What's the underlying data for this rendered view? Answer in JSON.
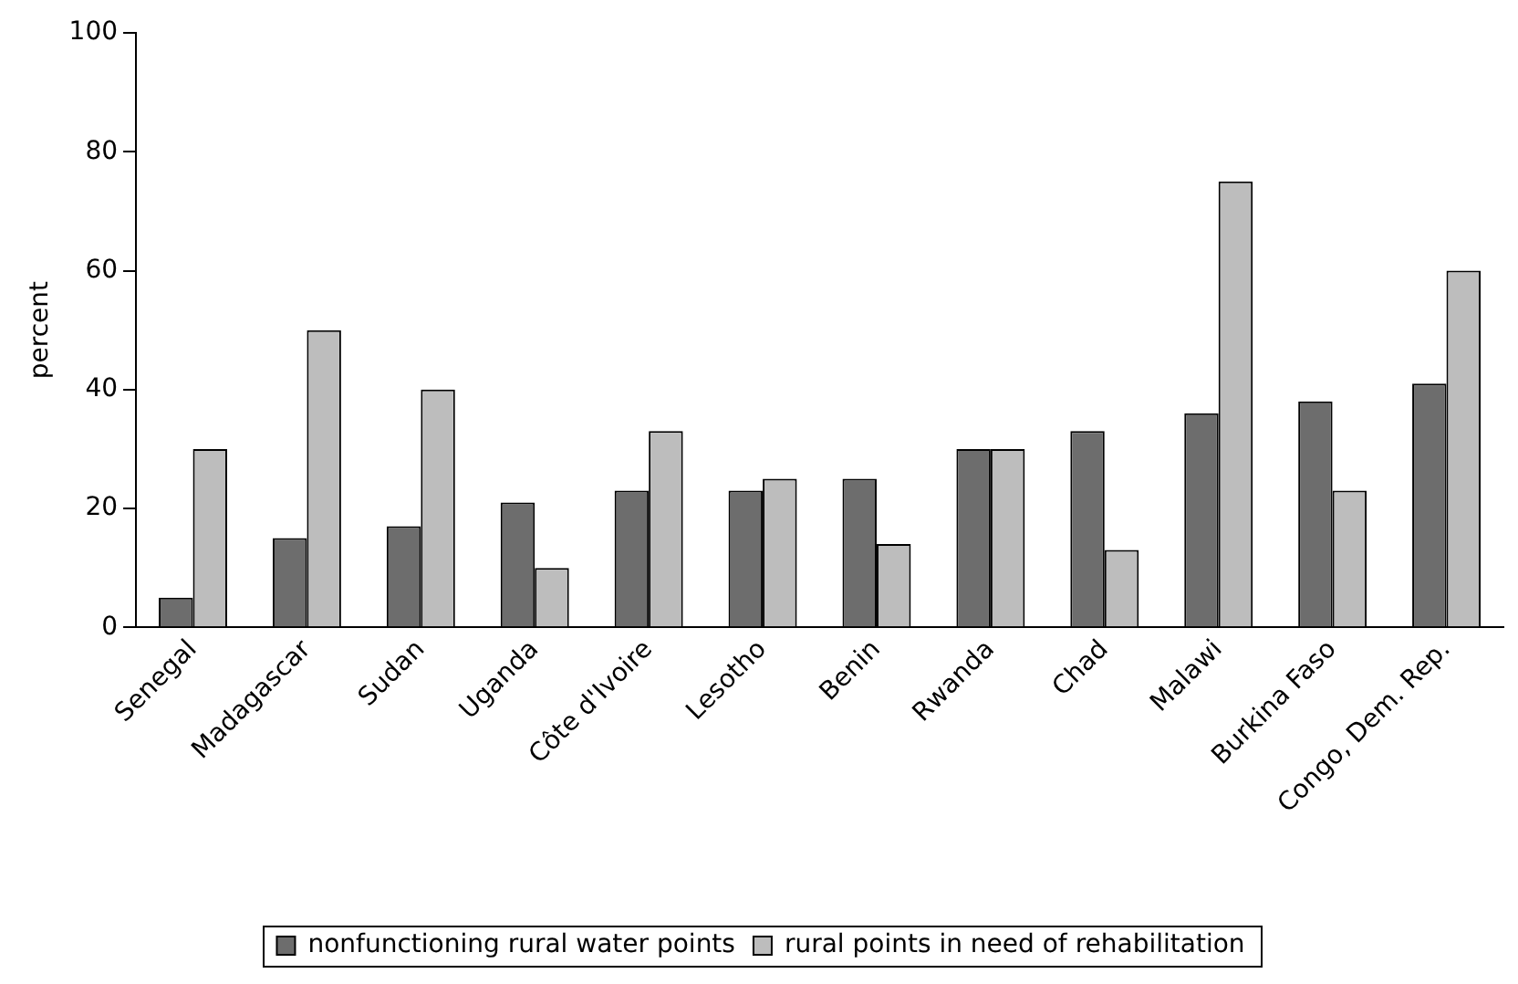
{
  "chart_data": {
    "type": "bar",
    "ylabel": "percent",
    "categories": [
      "Senegal",
      "Madagascar",
      "Sudan",
      "Uganda",
      "Côte d'Ivoire",
      "Lesotho",
      "Benin",
      "Rwanda",
      "Chad",
      "Malawi",
      "Burkina Faso",
      "Congo, Dem. Rep."
    ],
    "series": [
      {
        "name": "nonfunctioning rural water points",
        "color": "#6d6d6d",
        "values": [
          5,
          15,
          17,
          21,
          23,
          23,
          25,
          30,
          33,
          36,
          38,
          41
        ]
      },
      {
        "name": "rural points in need of rehabilitation",
        "color": "#bdbdbd",
        "values": [
          30,
          50,
          40,
          10,
          33,
          25,
          14,
          30,
          13,
          75,
          23,
          60
        ]
      }
    ],
    "ylim": [
      0,
      100
    ],
    "yticks": [
      0,
      20,
      40,
      60,
      80,
      100
    ],
    "grid": false,
    "legend": "bottom"
  }
}
